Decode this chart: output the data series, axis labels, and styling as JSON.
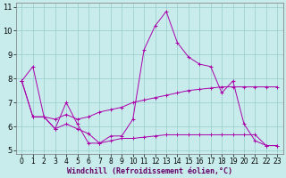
{
  "xlabel": "Windchill (Refroidissement éolien,°C)",
  "bg_color": "#c8ecec",
  "line_color": "#aa00aa",
  "grid_color": "#99cccc",
  "xmin": -0.5,
  "xmax": 23.5,
  "ymin": 4.85,
  "ymax": 11.15,
  "series1": [
    7.9,
    8.5,
    6.4,
    5.9,
    7.0,
    6.1,
    5.3,
    5.3,
    5.6,
    5.6,
    6.3,
    9.2,
    10.2,
    10.8,
    9.5,
    8.9,
    8.6,
    8.5,
    7.4,
    7.9,
    6.1,
    5.4,
    5.2,
    5.2
  ],
  "series2": [
    7.9,
    6.4,
    6.4,
    6.3,
    6.5,
    6.3,
    6.4,
    6.6,
    6.7,
    6.8,
    7.0,
    7.1,
    7.2,
    7.3,
    7.4,
    7.5,
    7.55,
    7.6,
    7.65,
    7.65,
    7.65,
    7.65,
    7.65,
    7.65
  ],
  "series3": [
    7.9,
    6.4,
    6.4,
    5.9,
    6.1,
    5.9,
    5.7,
    5.3,
    5.4,
    5.5,
    5.5,
    5.55,
    5.6,
    5.65,
    5.65,
    5.65,
    5.65,
    5.65,
    5.65,
    5.65,
    5.65,
    5.65,
    5.2,
    5.2
  ],
  "x": [
    0,
    1,
    2,
    3,
    4,
    5,
    6,
    7,
    8,
    9,
    10,
    11,
    12,
    13,
    14,
    15,
    16,
    17,
    18,
    19,
    20,
    21,
    22,
    23
  ],
  "xticks": [
    0,
    1,
    2,
    3,
    4,
    5,
    6,
    7,
    8,
    9,
    10,
    11,
    12,
    13,
    14,
    15,
    16,
    17,
    18,
    19,
    20,
    21,
    22,
    23
  ],
  "yticks": [
    5,
    6,
    7,
    8,
    9,
    10,
    11
  ],
  "tick_fontsize": 5.5,
  "label_fontsize": 6.0
}
